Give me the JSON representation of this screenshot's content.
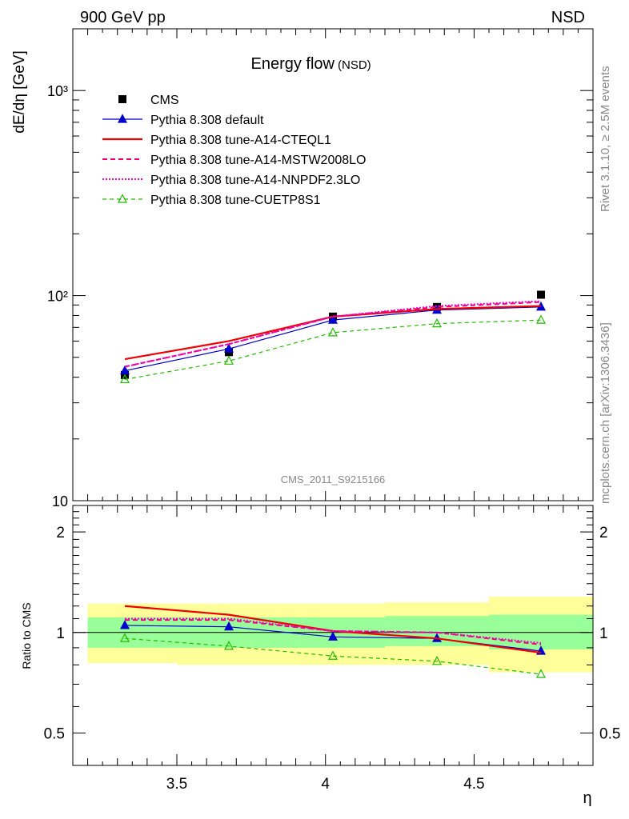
{
  "header": {
    "left": "900 GeV pp",
    "right": "NSD"
  },
  "side_text": {
    "top": "Rivet 3.1.10, ≥ 2.5M events",
    "bottom": "mcplots.cern.ch [arXiv:1306.3436]"
  },
  "watermark": "CMS_2011_S9215166",
  "chart_data": [
    {
      "type": "line",
      "panel": "main",
      "title": "Energy flow",
      "subtitle": "(NSD)",
      "ylabel": "dE/dη [GeV]",
      "yscale": "log",
      "ylim": [
        10,
        2000
      ],
      "xlim": [
        3.15,
        4.9
      ],
      "y_tick_labels": [
        "10",
        "10²",
        "10³"
      ],
      "legend_position": "top-left",
      "x": [
        3.325,
        3.675,
        4.025,
        4.375,
        4.725
      ],
      "series": [
        {
          "name": "CMS",
          "values": [
            41,
            53,
            79,
            88,
            101
          ],
          "color": "#000000",
          "style": "markers",
          "marker": "square"
        },
        {
          "name": "Pythia 8.308 default",
          "values": [
            43,
            55,
            76,
            85,
            88
          ],
          "color": "#0000cc",
          "style": "solid-thin",
          "marker": "triangle-filled"
        },
        {
          "name": "Pythia 8.308 tune-A14-CTEQL1",
          "values": [
            49,
            60,
            79,
            86,
            89
          ],
          "color": "#ee0000",
          "style": "solid-thick",
          "marker": "none"
        },
        {
          "name": "Pythia 8.308 tune-A14-MSTW2008LO",
          "values": [
            45,
            58,
            79,
            88,
            93
          ],
          "color": "#ee0077",
          "style": "dashed",
          "marker": "none"
        },
        {
          "name": "Pythia 8.308 tune-A14-NNPDF2.3LO",
          "values": [
            45,
            58,
            79,
            89,
            94
          ],
          "color": "#ee00cc",
          "style": "dotted",
          "marker": "none"
        },
        {
          "name": "Pythia 8.308 tune-CUETP8S1",
          "values": [
            39,
            48,
            66,
            73,
            76
          ],
          "color": "#22bb00",
          "style": "dashed-thin",
          "marker": "triangle-open"
        }
      ]
    },
    {
      "type": "line",
      "panel": "ratio",
      "ylabel": "Ratio to CMS",
      "xlabel": "η",
      "ylim": [
        0.4,
        2.4
      ],
      "yscale": "log",
      "xlim": [
        3.15,
        4.9
      ],
      "x_ticks": [
        3.5,
        4,
        4.5
      ],
      "x_tick_labels": [
        "3.5",
        "4",
        "4.5"
      ],
      "y_ticks": [
        0.5,
        1,
        2
      ],
      "y_tick_labels": [
        "0.5",
        "1",
        "2"
      ],
      "bin_edges": [
        3.15,
        3.5,
        3.85,
        4.2,
        4.55,
        4.9
      ],
      "band_inner": [
        [
          0.9,
          1.11
        ],
        [
          0.9,
          1.11
        ],
        [
          0.9,
          1.11
        ],
        [
          0.91,
          1.12
        ],
        [
          0.89,
          1.13
        ]
      ],
      "band_outer": [
        [
          0.81,
          1.22
        ],
        [
          0.8,
          1.22
        ],
        [
          0.8,
          1.22
        ],
        [
          0.8,
          1.23
        ],
        [
          0.76,
          1.28
        ]
      ],
      "x": [
        3.325,
        3.675,
        4.025,
        4.375,
        4.725
      ],
      "series": [
        {
          "name": "Pythia 8.308 default",
          "values": [
            1.05,
            1.04,
            0.97,
            0.96,
            0.88
          ]
        },
        {
          "name": "Pythia 8.308 tune-A14-CTEQL1",
          "values": [
            1.2,
            1.13,
            1.01,
            0.96,
            0.87
          ]
        },
        {
          "name": "Pythia 8.308 tune-A14-MSTW2008LO",
          "values": [
            1.09,
            1.09,
            1.01,
            1.0,
            0.92
          ]
        },
        {
          "name": "Pythia 8.308 tune-A14-NNPDF2.3LO",
          "values": [
            1.1,
            1.1,
            1.01,
            1.0,
            0.93
          ]
        },
        {
          "name": "Pythia 8.308 tune-CUETP8S1",
          "values": [
            0.96,
            0.91,
            0.85,
            0.82,
            0.75
          ]
        }
      ]
    }
  ]
}
